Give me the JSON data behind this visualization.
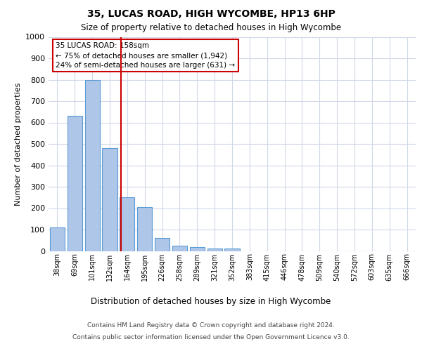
{
  "title1": "35, LUCAS ROAD, HIGH WYCOMBE, HP13 6HP",
  "title2": "Size of property relative to detached houses in High Wycombe",
  "xlabel": "Distribution of detached houses by size in High Wycombe",
  "ylabel": "Number of detached properties",
  "bar_values": [
    110,
    630,
    800,
    480,
    250,
    205,
    60,
    25,
    18,
    12,
    10,
    0,
    0,
    0,
    0,
    0,
    0,
    0,
    0,
    0,
    0
  ],
  "categories": [
    "38sqm",
    "69sqm",
    "101sqm",
    "132sqm",
    "164sqm",
    "195sqm",
    "226sqm",
    "258sqm",
    "289sqm",
    "321sqm",
    "352sqm",
    "383sqm",
    "415sqm",
    "446sqm",
    "478sqm",
    "509sqm",
    "540sqm",
    "572sqm",
    "603sqm",
    "635sqm",
    "666sqm"
  ],
  "bar_color": "#aec6e8",
  "bar_edge_color": "#5b9bd5",
  "grid_color": "#d0d8e8",
  "annotation_box_color": "#ffffff",
  "annotation_border_color": "#cc0000",
  "annotation_text_line1": "35 LUCAS ROAD: 158sqm",
  "annotation_text_line2": "← 75% of detached houses are smaller (1,942)",
  "annotation_text_line3": "24% of semi-detached houses are larger (631) →",
  "red_line_x": 3.65,
  "ylim": [
    0,
    1000
  ],
  "yticks": [
    0,
    100,
    200,
    300,
    400,
    500,
    600,
    700,
    800,
    900,
    1000
  ],
  "footer_line1": "Contains HM Land Registry data © Crown copyright and database right 2024.",
  "footer_line2": "Contains public sector information licensed under the Open Government Licence v3.0."
}
